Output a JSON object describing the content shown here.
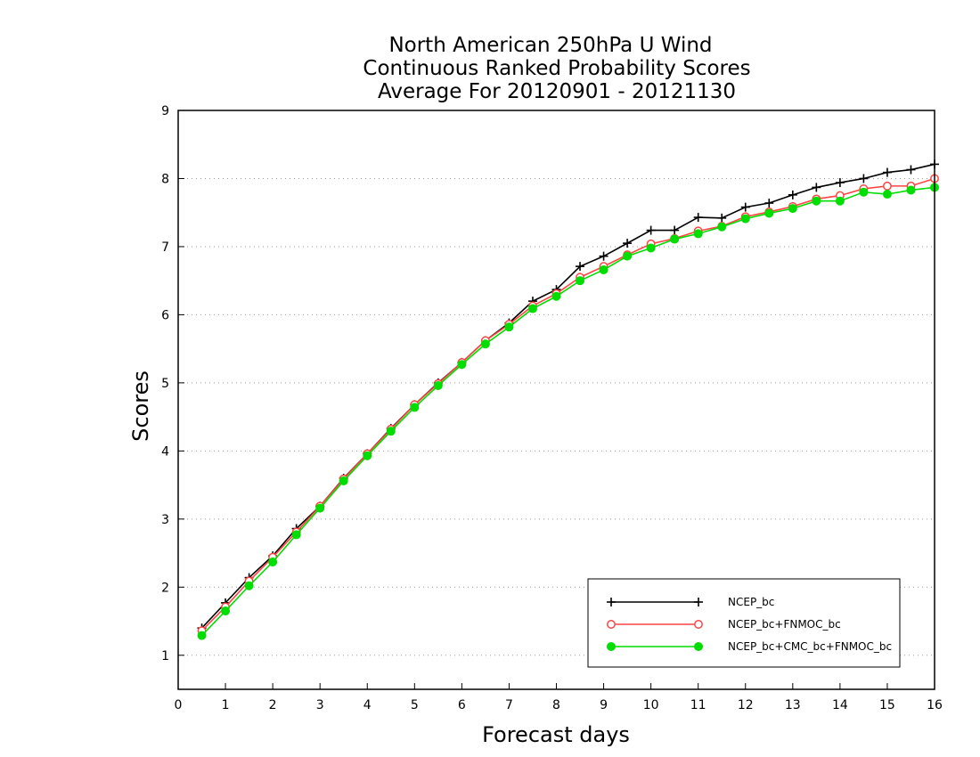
{
  "chart_data": {
    "type": "line",
    "title": [
      "North American 250hPa U Wind",
      "Continuous Ranked Probability Scores",
      "Average For 20120901 - 20121130"
    ],
    "xlabel": "Forecast days",
    "ylabel": "Scores",
    "xlim": [
      0,
      16
    ],
    "ylim": [
      0.5,
      9
    ],
    "xticks": [
      0,
      1,
      2,
      3,
      4,
      5,
      6,
      7,
      8,
      9,
      10,
      11,
      12,
      13,
      14,
      15,
      16
    ],
    "yticks": [
      1,
      2,
      3,
      4,
      5,
      6,
      7,
      8,
      9
    ],
    "grid": "horizontal dotted",
    "legend_position": "bottom-right",
    "x": [
      0.5,
      1,
      1.5,
      2,
      2.5,
      3,
      3.5,
      4,
      4.5,
      5,
      5.5,
      6,
      6.5,
      7,
      7.5,
      8,
      8.5,
      9,
      9.5,
      10,
      10.5,
      11,
      11.5,
      12,
      12.5,
      13,
      13.5,
      14,
      14.5,
      15,
      15.5,
      16
    ],
    "series": [
      {
        "name": "NCEP_bc",
        "color": "#000000",
        "marker": "plus",
        "values": [
          1.4,
          1.77,
          2.14,
          2.46,
          2.86,
          3.19,
          3.6,
          3.96,
          4.33,
          4.68,
          5.0,
          5.3,
          5.62,
          5.88,
          6.2,
          6.37,
          6.71,
          6.86,
          7.05,
          7.24,
          7.24,
          7.43,
          7.42,
          7.58,
          7.64,
          7.76,
          7.87,
          7.94,
          8.0,
          8.09,
          8.13,
          8.21
        ]
      },
      {
        "name": "NCEP_bc+FNMOC_bc",
        "color": "#ff4444",
        "marker": "circle-open",
        "values": [
          1.36,
          1.71,
          2.09,
          2.44,
          2.81,
          3.19,
          3.59,
          3.96,
          4.32,
          4.68,
          4.99,
          5.3,
          5.62,
          5.86,
          6.13,
          6.31,
          6.55,
          6.71,
          6.88,
          7.04,
          7.12,
          7.23,
          7.3,
          7.44,
          7.51,
          7.59,
          7.7,
          7.75,
          7.85,
          7.89,
          7.89,
          8.0
        ]
      },
      {
        "name": "NCEP_bc+CMC_bc+FNMOC_bc",
        "color": "#00dd00",
        "marker": "circle-filled",
        "values": [
          1.29,
          1.65,
          2.02,
          2.37,
          2.77,
          3.16,
          3.56,
          3.93,
          4.29,
          4.64,
          4.96,
          5.27,
          5.57,
          5.82,
          6.09,
          6.27,
          6.5,
          6.66,
          6.86,
          6.98,
          7.11,
          7.19,
          7.29,
          7.41,
          7.49,
          7.56,
          7.67,
          7.67,
          7.8,
          7.77,
          7.83,
          7.87
        ]
      }
    ]
  }
}
